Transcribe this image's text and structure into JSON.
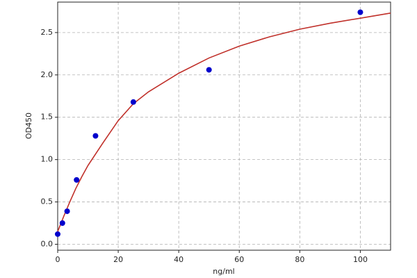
{
  "chart_data": {
    "type": "scatter",
    "xlabel": "ng/ml",
    "ylabel": "OD450",
    "points": {
      "color": "#0000cc",
      "x": [
        0,
        1.5625,
        3.125,
        6.25,
        12.5,
        25,
        50,
        100
      ],
      "y": [
        0.12,
        0.25,
        0.39,
        0.76,
        1.28,
        1.68,
        2.06,
        2.74
      ]
    },
    "curve": {
      "color": "#c0302a",
      "x": [
        0,
        2,
        4,
        6,
        8,
        10,
        15,
        20,
        25,
        30,
        40,
        50,
        60,
        70,
        80,
        90,
        100,
        110
      ],
      "y": [
        0.15,
        0.33,
        0.5,
        0.66,
        0.8,
        0.93,
        1.2,
        1.46,
        1.66,
        1.8,
        2.02,
        2.2,
        2.34,
        2.45,
        2.54,
        2.61,
        2.67,
        2.73
      ]
    },
    "xlim": [
      0,
      110
    ],
    "ylim": [
      -0.07,
      2.86
    ],
    "xticks": [
      0,
      20,
      40,
      60,
      80,
      100
    ],
    "yticks": [
      {
        "value": 0,
        "label": "0.0"
      },
      {
        "value": 0.5,
        "label": "0.5"
      },
      {
        "value": 1,
        "label": "1.0"
      },
      {
        "value": 1.5,
        "label": "1.5"
      },
      {
        "value": 2,
        "label": "2.0"
      },
      {
        "value": 2.5,
        "label": "2.5"
      }
    ],
    "grid": true
  }
}
